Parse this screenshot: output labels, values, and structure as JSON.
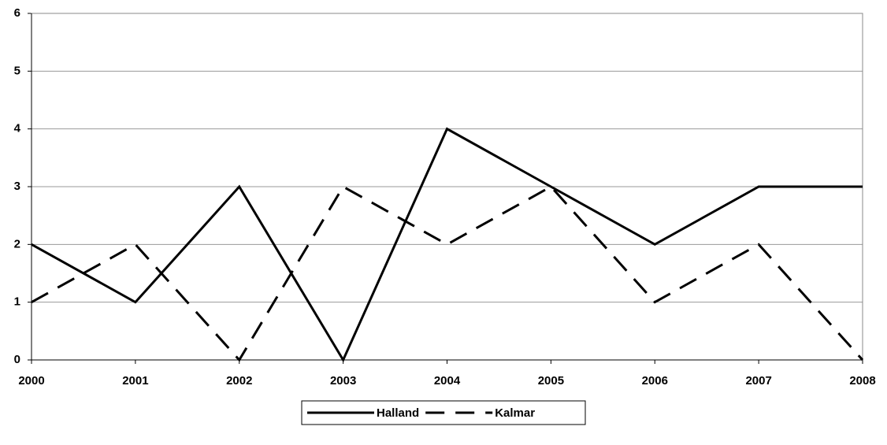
{
  "chart_data": {
    "type": "line",
    "x": [
      2000,
      2001,
      2002,
      2003,
      2004,
      2005,
      2006,
      2007,
      2008
    ],
    "xlim": [
      2000,
      2008
    ],
    "xticks": [
      2000,
      2001,
      2002,
      2003,
      2004,
      2005,
      2006,
      2007,
      2008
    ],
    "ylim": [
      0,
      6
    ],
    "yticks": [
      0,
      1,
      2,
      3,
      4,
      5,
      6
    ],
    "grid": true,
    "legend": "bottom",
    "series": [
      {
        "name": "Halland",
        "color": "#000000",
        "dash": "solid",
        "values": [
          2,
          1,
          3,
          0,
          4,
          3,
          2,
          3,
          3
        ]
      },
      {
        "name": "Kalmar",
        "color": "#000000",
        "dash": "dashed",
        "values": [
          1,
          2,
          0,
          3,
          2,
          3,
          1,
          2,
          0
        ]
      }
    ]
  }
}
